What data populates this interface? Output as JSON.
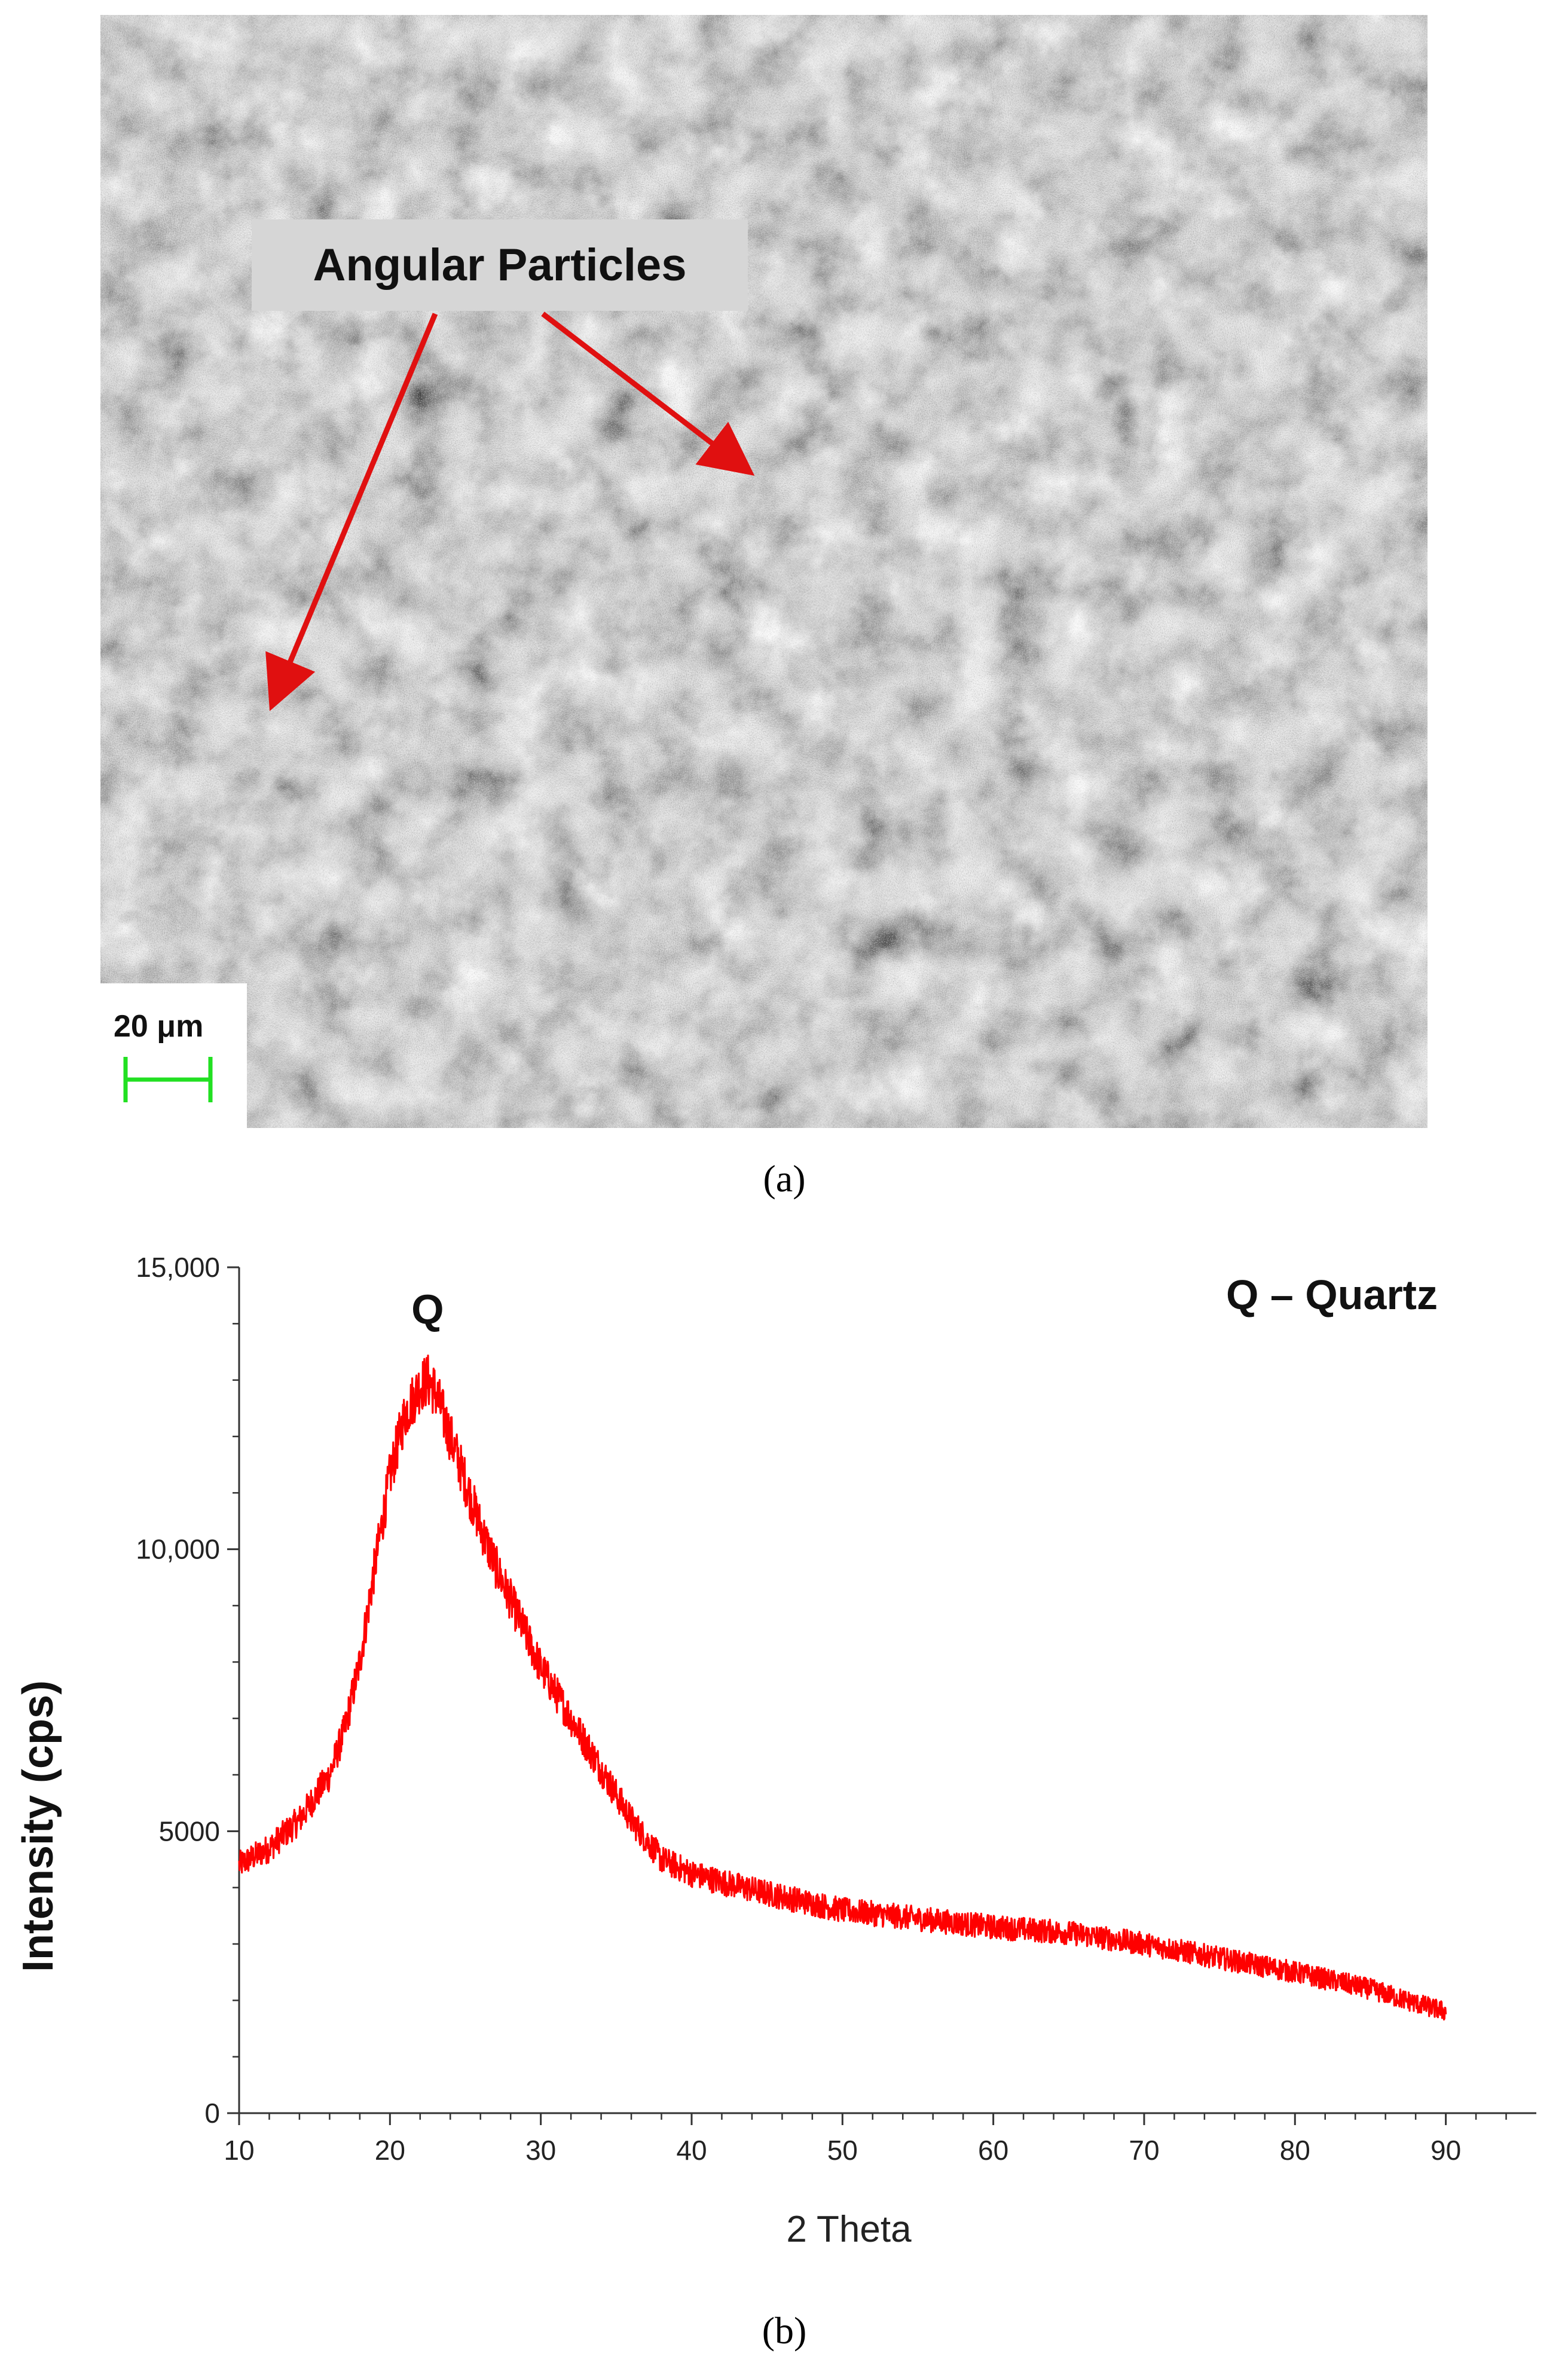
{
  "panel_a": {
    "caption": "(a)",
    "annotation_label": "Angular Particles",
    "scale_bar_label": "20 μm",
    "colors": {
      "arrow": "#e01010",
      "scale_bar": "#22e022",
      "label_box": "#d6d6d6"
    }
  },
  "panel_b": {
    "caption": "(b)",
    "peak_label": "Q",
    "legend_text": "Q – Quartz"
  },
  "chart_data": {
    "type": "line",
    "title": "",
    "xlabel": "2 Theta",
    "ylabel": "Intensity (cps)",
    "xlim": [
      10,
      96
    ],
    "ylim": [
      0,
      15000
    ],
    "x_ticks": [
      10,
      20,
      30,
      40,
      50,
      60,
      70,
      80,
      90
    ],
    "x_tick_labels": [
      "10",
      "20",
      "30",
      "40",
      "50",
      "60",
      "70",
      "80",
      "90"
    ],
    "y_ticks": [
      0,
      5000,
      10000,
      15000
    ],
    "y_tick_labels": [
      "0",
      "5000",
      "10,000",
      "15,000"
    ],
    "grid": false,
    "line_color": "#ff0000",
    "series": [
      {
        "x": [
          10,
          12,
          14,
          16,
          17,
          18,
          19,
          20,
          21,
          22,
          22.5,
          23,
          24,
          25,
          26,
          27,
          28,
          30,
          32,
          34,
          36,
          38,
          40,
          42,
          45,
          50,
          55,
          60,
          65,
          70,
          75,
          80,
          85,
          88,
          90
        ],
        "values": [
          4400,
          4700,
          5200,
          6000,
          6800,
          8000,
          9700,
          11300,
          12400,
          12900,
          13000,
          12800,
          12000,
          11200,
          10400,
          9700,
          9100,
          7900,
          7000,
          6100,
          5200,
          4500,
          4250,
          4100,
          3900,
          3600,
          3450,
          3300,
          3200,
          3000,
          2750,
          2500,
          2200,
          1950,
          1800
        ]
      }
    ],
    "annotations": [
      {
        "text": "Q",
        "x": 22.5,
        "y": 14000
      }
    ]
  }
}
